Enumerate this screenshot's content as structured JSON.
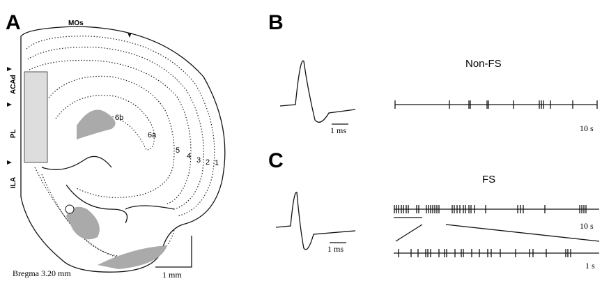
{
  "panels": {
    "a": {
      "label": "A",
      "regions": [
        "MOs",
        "ACAd",
        "PL",
        "ILA"
      ],
      "layers": [
        "6b",
        "6a",
        "5",
        "4",
        "3",
        "2",
        "1"
      ],
      "caption": "Bregma 3.20 mm",
      "scale_bar": "1 mm"
    },
    "b": {
      "label": "B",
      "title": "Non-FS",
      "waveform_scale": "1 ms",
      "train_scale": "10 s"
    },
    "c": {
      "label": "C",
      "title": "FS",
      "waveform_scale": "1 ms",
      "train_scale": "10 s",
      "zoom_scale": "1 s"
    }
  }
}
